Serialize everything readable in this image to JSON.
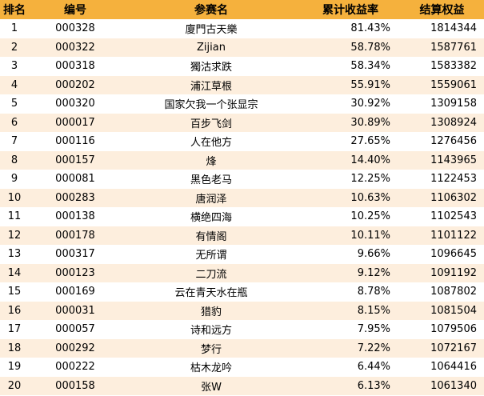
{
  "headers": {
    "rank": "排名",
    "id": "编号",
    "name": "参赛名",
    "return": "累计收益率",
    "equity": "结算权益"
  },
  "colors": {
    "header_bg": "#f5b13d",
    "stripe_bg": "#fdeedd"
  },
  "rows": [
    {
      "rank": "1",
      "id": "000328",
      "name": "廈門古天樂",
      "return": "81.43%",
      "equity": "1814344"
    },
    {
      "rank": "2",
      "id": "000322",
      "name": "Zijian",
      "return": "58.78%",
      "equity": "1587761"
    },
    {
      "rank": "3",
      "id": "000318",
      "name": "獨沽求跌",
      "return": "58.34%",
      "equity": "1583382"
    },
    {
      "rank": "4",
      "id": "000202",
      "name": "浦江草根",
      "return": "55.91%",
      "equity": "1559061"
    },
    {
      "rank": "5",
      "id": "000320",
      "name": "国家欠我一个张显宗",
      "return": "30.92%",
      "equity": "1309158"
    },
    {
      "rank": "6",
      "id": "000017",
      "name": "百步飞剑",
      "return": "30.89%",
      "equity": "1308924"
    },
    {
      "rank": "7",
      "id": "000116",
      "name": "人在他方",
      "return": "27.65%",
      "equity": "1276456"
    },
    {
      "rank": "8",
      "id": "000157",
      "name": "烽",
      "return": "14.40%",
      "equity": "1143965"
    },
    {
      "rank": "9",
      "id": "000081",
      "name": "黑色老马",
      "return": "12.25%",
      "equity": "1122453"
    },
    {
      "rank": "10",
      "id": "000283",
      "name": "唐润泽",
      "return": "10.63%",
      "equity": "1106302"
    },
    {
      "rank": "11",
      "id": "000138",
      "name": "横绝四海",
      "return": "10.25%",
      "equity": "1102543"
    },
    {
      "rank": "12",
      "id": "000178",
      "name": "有情阁",
      "return": "10.11%",
      "equity": "1101122"
    },
    {
      "rank": "13",
      "id": "000317",
      "name": "无所谓",
      "return": "9.66%",
      "equity": "1096645"
    },
    {
      "rank": "14",
      "id": "000123",
      "name": "二刀流",
      "return": "9.12%",
      "equity": "1091192"
    },
    {
      "rank": "15",
      "id": "000169",
      "name": "云在青天水在瓶",
      "return": "8.78%",
      "equity": "1087802"
    },
    {
      "rank": "16",
      "id": "000031",
      "name": "猎豹",
      "return": "8.15%",
      "equity": "1081504"
    },
    {
      "rank": "17",
      "id": "000057",
      "name": "诗和远方",
      "return": "7.95%",
      "equity": "1079506"
    },
    {
      "rank": "18",
      "id": "000292",
      "name": "梦行",
      "return": "7.22%",
      "equity": "1072167"
    },
    {
      "rank": "19",
      "id": "000222",
      "name": "枯木龙吟",
      "return": "6.44%",
      "equity": "1064416"
    },
    {
      "rank": "20",
      "id": "000158",
      "name": "张W",
      "return": "6.13%",
      "equity": "1061340"
    }
  ]
}
